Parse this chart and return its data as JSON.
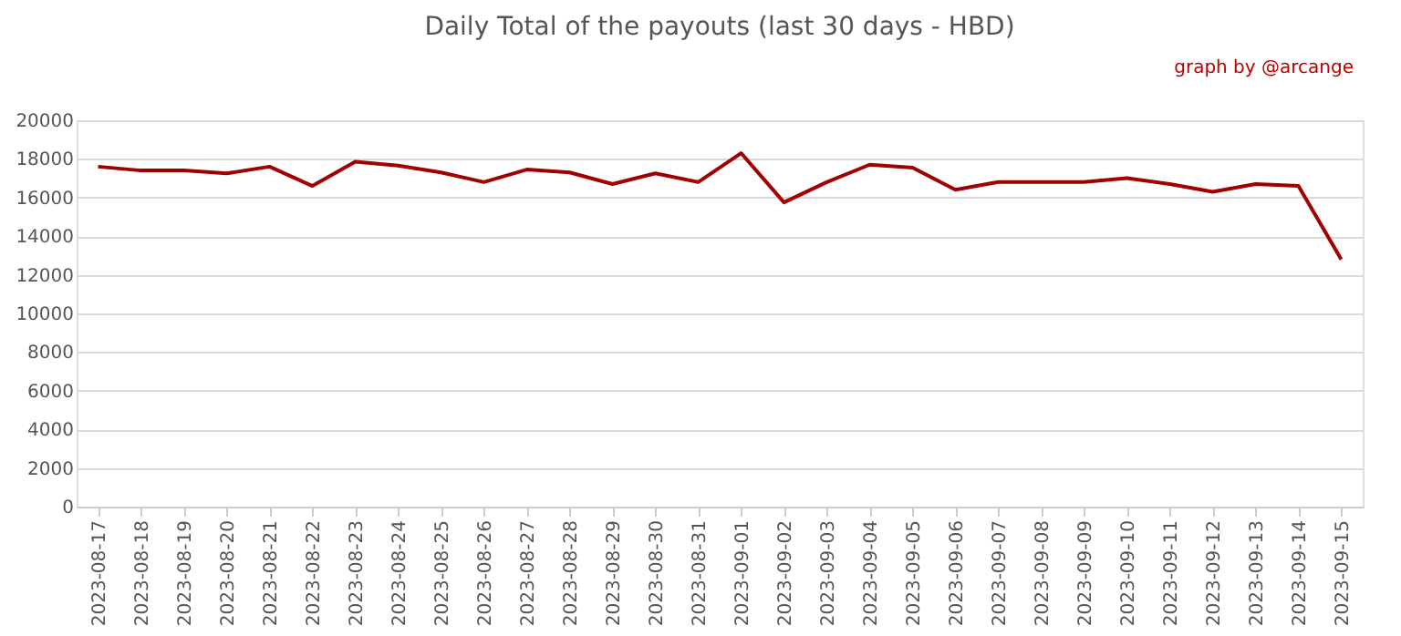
{
  "chart_data": {
    "type": "line",
    "title": "Daily Total of the payouts (last 30 days - HBD)",
    "annotations": [
      "graph by @arcange"
    ],
    "categories": [
      "2023-08-17",
      "2023-08-18",
      "2023-08-19",
      "2023-08-20",
      "2023-08-21",
      "2023-08-22",
      "2023-08-23",
      "2023-08-24",
      "2023-08-25",
      "2023-08-26",
      "2023-08-27",
      "2023-08-28",
      "2023-08-29",
      "2023-08-30",
      "2023-08-31",
      "2023-09-01",
      "2023-09-02",
      "2023-09-03",
      "2023-09-04",
      "2023-09-05",
      "2023-09-06",
      "2023-09-07",
      "2023-09-08",
      "2023-09-09",
      "2023-09-10",
      "2023-09-11",
      "2023-09-12",
      "2023-09-13",
      "2023-09-14",
      "2023-09-15"
    ],
    "series": [
      {
        "color": "#a00000",
        "values": [
          17600,
          17400,
          17400,
          17250,
          17600,
          16600,
          17850,
          17650,
          17300,
          16800,
          17450,
          17300,
          16700,
          17250,
          16800,
          18300,
          15750,
          16800,
          17700,
          17550,
          16400,
          16800,
          16800,
          16800,
          17000,
          16700,
          16300,
          16700,
          16600,
          12800
        ]
      }
    ],
    "ylim": [
      0,
      20000
    ],
    "yticks": [
      0,
      2000,
      4000,
      6000,
      8000,
      10000,
      12000,
      14000,
      16000,
      18000,
      20000
    ],
    "grid": "y",
    "marker": "none",
    "line_style": "solid"
  }
}
